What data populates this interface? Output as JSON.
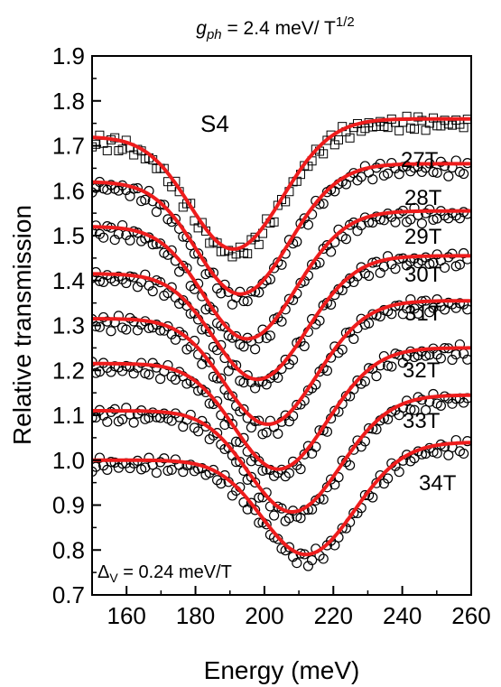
{
  "chart_data": {
    "type": "line",
    "title_base": "g",
    "title_sub": "ph",
    "title_rest": " = 2.4 meV/ T",
    "title_sup": "1/2",
    "sample_label": "S4",
    "xlabel": "Energy (meV)",
    "ylabel": "Relative transmission",
    "xlim": [
      150,
      260
    ],
    "ylim": [
      0.7,
      1.9
    ],
    "x_ticks": [
      "160",
      "180",
      "200",
      "220",
      "240",
      "260"
    ],
    "y_ticks": [
      "0.7",
      "0.8",
      "0.9",
      "1.0",
      "1.1",
      "1.2",
      "1.3",
      "1.4",
      "1.5",
      "1.6",
      "1.7",
      "1.8",
      "1.9"
    ],
    "annotation_base": "Δ",
    "annotation_sub": "V",
    "annotation_rest": " = 0.24 meV/T",
    "colors": {
      "fit": "#ee1c1c",
      "data": "#000000"
    },
    "series": [
      {
        "label": "27T",
        "baseline": 1.72,
        "end": 1.76,
        "min_x": 191,
        "min_y": 1.47,
        "marker": "square"
      },
      {
        "label": "28T",
        "baseline": 1.62,
        "end": 1.66,
        "min_x": 193,
        "min_y": 1.37,
        "marker": "circle"
      },
      {
        "label": "29T",
        "baseline": 1.52,
        "end": 1.555,
        "min_x": 195,
        "min_y": 1.27,
        "marker": "circle"
      },
      {
        "label": "30T",
        "baseline": 1.415,
        "end": 1.455,
        "min_x": 198,
        "min_y": 1.18,
        "marker": "circle"
      },
      {
        "label": "31T",
        "baseline": 1.315,
        "end": 1.355,
        "min_x": 201,
        "min_y": 1.08,
        "marker": "circle"
      },
      {
        "label": "32T",
        "baseline": 1.215,
        "end": 1.25,
        "min_x": 204,
        "min_y": 0.98,
        "marker": "circle"
      },
      {
        "label": "33T",
        "baseline": 1.11,
        "end": 1.145,
        "min_x": 208,
        "min_y": 0.885,
        "marker": "circle"
      },
      {
        "label": "34T",
        "baseline": 1.0,
        "end": 1.04,
        "min_x": 212,
        "min_y": 0.79,
        "marker": "circle"
      }
    ]
  }
}
